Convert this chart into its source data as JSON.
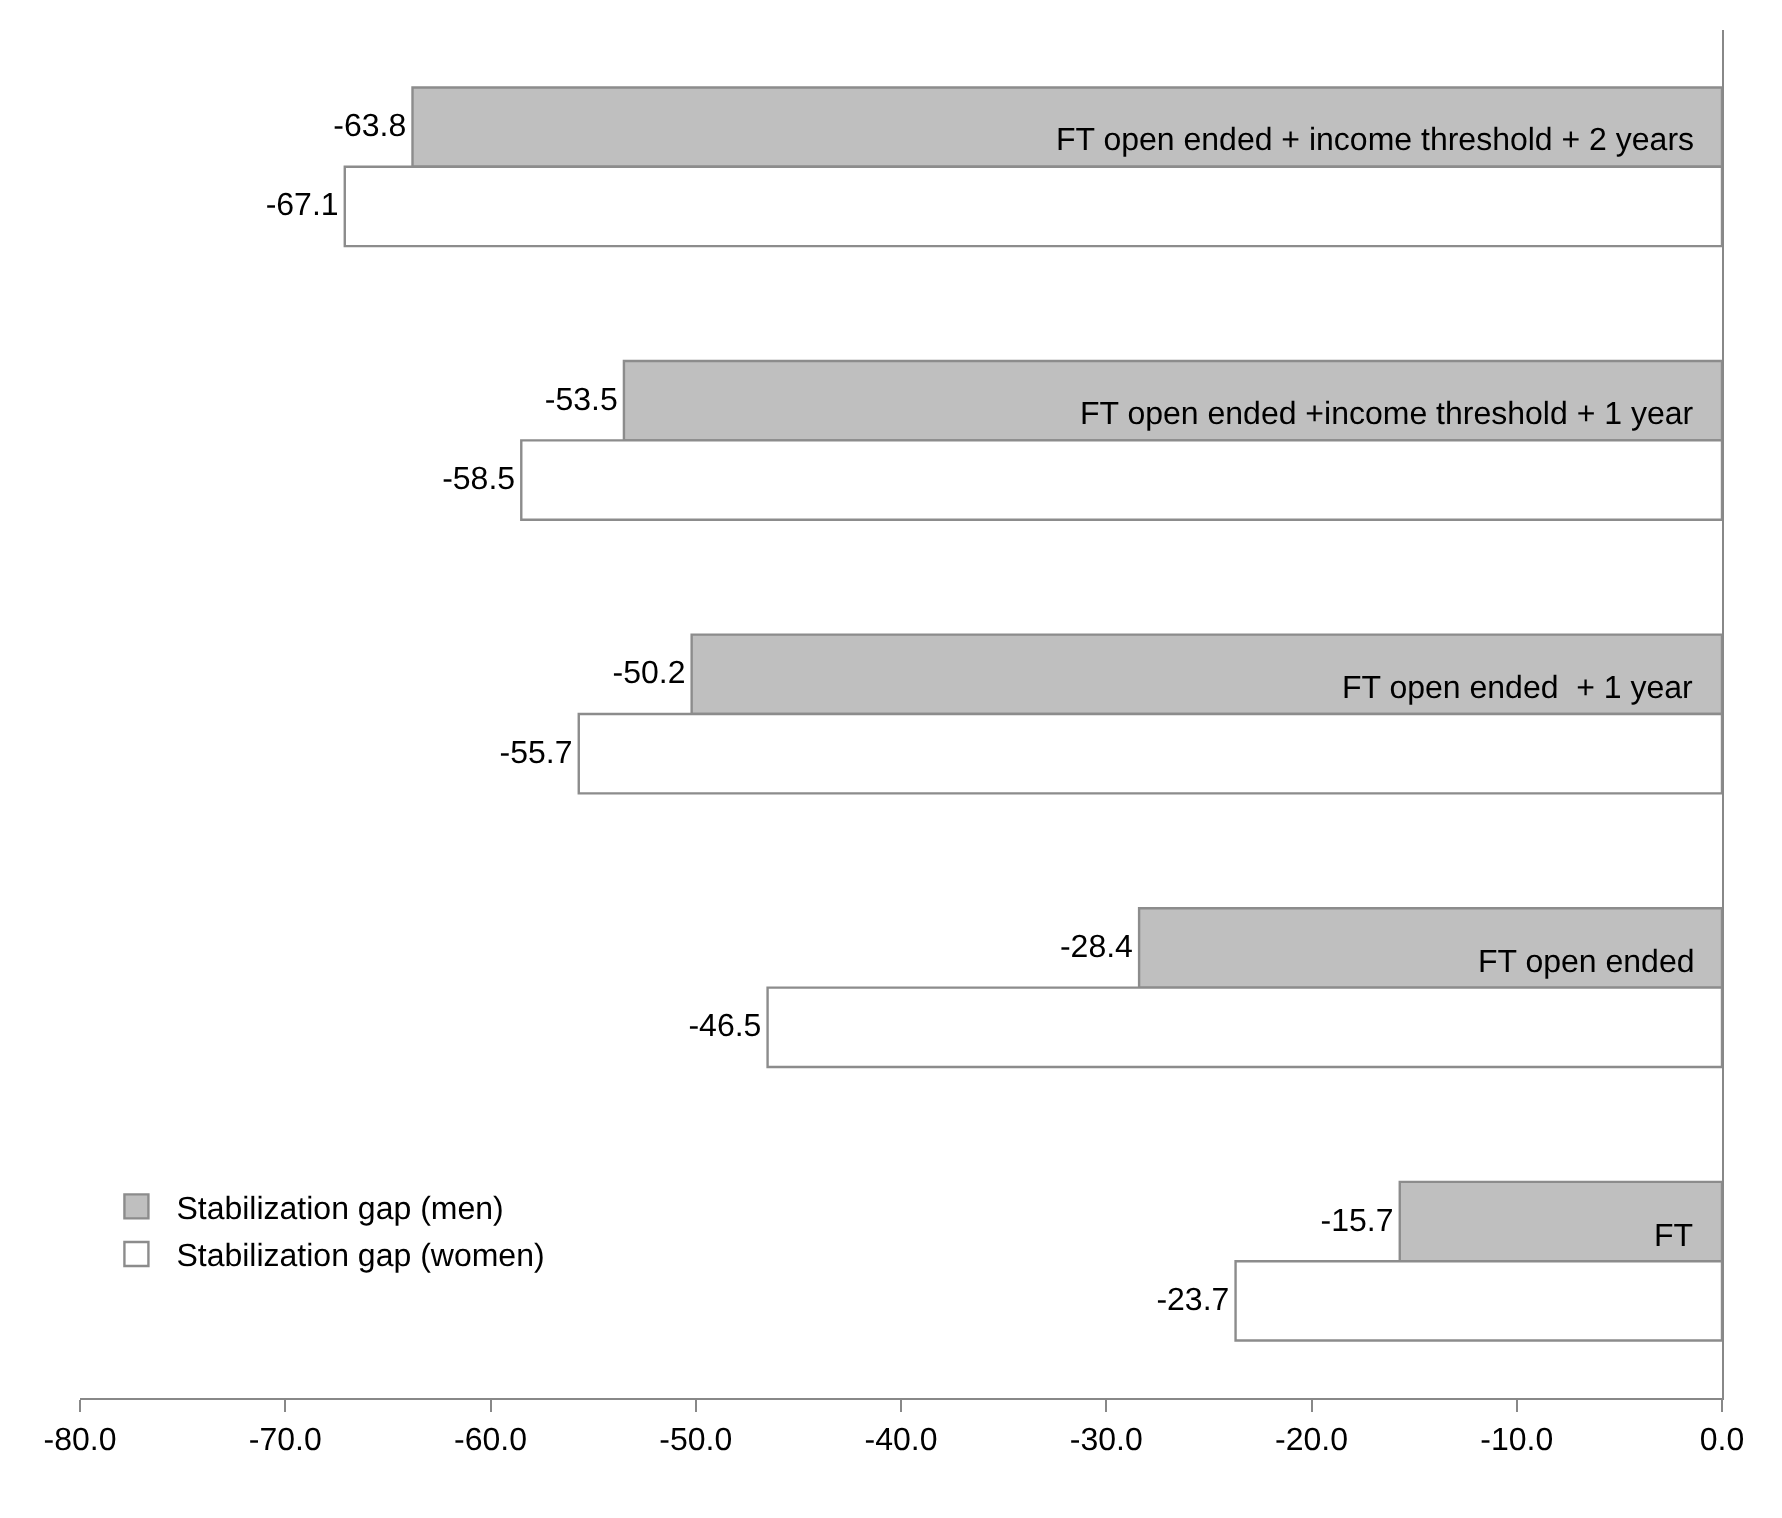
{
  "chart_data": {
    "type": "bar",
    "orientation": "horizontal",
    "categories": [
      "FT open ended + income threshold + 2 years",
      "FT open ended +income threshold + 1 year",
      "FT open ended  + 1 year",
      "FT open ended",
      "FT"
    ],
    "series": [
      {
        "name": "Stabilization gap (men)",
        "color": "#bfbfbf",
        "values": [
          -63.8,
          -53.5,
          -50.2,
          -28.4,
          -15.7
        ]
      },
      {
        "name": "Stabilization gap (women)",
        "color": "#ffffff",
        "values": [
          -67.1,
          -58.5,
          -55.7,
          -46.5,
          -23.7
        ]
      }
    ],
    "xlim": [
      -80,
      0
    ],
    "xticks": [
      {
        "value": -80,
        "label": "-80.0"
      },
      {
        "value": -70,
        "label": "-70.0"
      },
      {
        "value": -60,
        "label": "-60.0"
      },
      {
        "value": -50,
        "label": "-50.0"
      },
      {
        "value": -40,
        "label": "-40.0"
      },
      {
        "value": -30,
        "label": "-30.0"
      },
      {
        "value": -20,
        "label": "-20.0"
      },
      {
        "value": -10,
        "label": "-10.0"
      },
      {
        "value": 0,
        "label": "0.0"
      }
    ],
    "data_labels": true,
    "legend": "bottom left"
  }
}
